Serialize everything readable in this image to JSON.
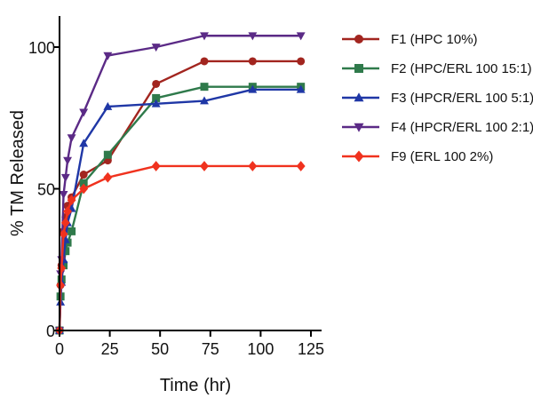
{
  "chart_data": {
    "type": "line",
    "title": "",
    "xlabel": "Time (hr)",
    "ylabel": "% TM Released",
    "xlim": [
      0,
      130
    ],
    "ylim": [
      0,
      110
    ],
    "x_ticks": [
      "0",
      "25",
      "50",
      "75",
      "100",
      "125"
    ],
    "y_ticks": [
      "0",
      "50",
      "100"
    ],
    "legend_position": "right",
    "x": [
      0,
      0.5,
      1,
      2,
      3,
      4,
      6,
      12,
      24,
      48,
      72,
      96,
      120
    ],
    "series": [
      {
        "name": "F1 (HPC 10%)",
        "color": "#a2251f",
        "marker": "circle",
        "values": [
          0,
          16,
          23,
          35,
          40,
          44,
          47,
          55,
          60,
          87,
          95,
          95,
          95
        ]
      },
      {
        "name": "F2 (HPC/ERL 100 15:1)",
        "color": "#2f7a4b",
        "marker": "square",
        "values": [
          0,
          12,
          18,
          23,
          28,
          31,
          35,
          52,
          62,
          82,
          86,
          86,
          86
        ]
      },
      {
        "name": "F3 (HPCR/ERL 100 5:1)",
        "color": "#1f37a6",
        "marker": "triangle-up",
        "values": [
          0,
          10,
          17,
          25,
          32,
          38,
          43,
          66,
          79,
          80,
          81,
          85,
          85
        ]
      },
      {
        "name": "F4 (HPCR/ERL 100 2:1)",
        "color": "#5b2a86",
        "marker": "triangle-down",
        "values": [
          0,
          20,
          25,
          48,
          54,
          60,
          68,
          77,
          97,
          100,
          104,
          104,
          104
        ]
      },
      {
        "name": "F9 (ERL 100 2%)",
        "color": "#f0321e",
        "marker": "diamond",
        "values": [
          0,
          16,
          22,
          34,
          38,
          42,
          46,
          50,
          54,
          58,
          58,
          58,
          58
        ]
      }
    ]
  }
}
